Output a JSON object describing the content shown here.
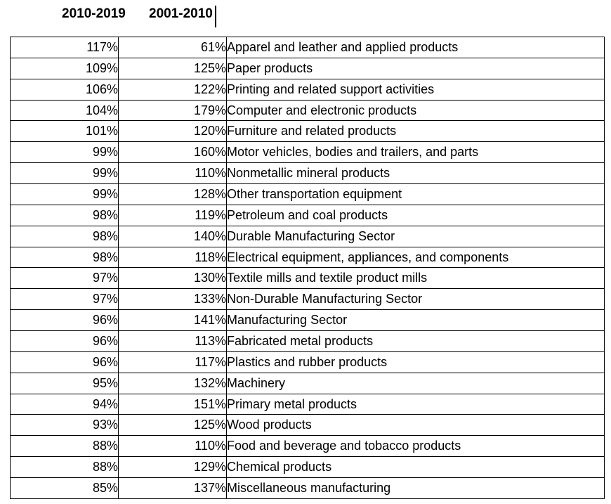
{
  "document": {
    "column_headers": [
      "2010-2019",
      "2001-2010"
    ]
  },
  "chart_data": {
    "type": "table",
    "columns": [
      "2010-2019",
      "2001-2010",
      ""
    ],
    "rows": [
      [
        "117%",
        "61%",
        "Apparel and leather and applied products"
      ],
      [
        "109%",
        "125%",
        "Paper products"
      ],
      [
        "106%",
        "122%",
        "Printing and related support activities"
      ],
      [
        "104%",
        "179%",
        "Computer and electronic products"
      ],
      [
        "101%",
        "120%",
        "Furniture and related products"
      ],
      [
        "99%",
        "160%",
        "Motor vehicles, bodies and trailers, and parts"
      ],
      [
        "99%",
        "110%",
        "Nonmetallic mineral products"
      ],
      [
        "99%",
        "128%",
        "Other transportation equipment"
      ],
      [
        "98%",
        "119%",
        "Petroleum and coal products"
      ],
      [
        "98%",
        "140%",
        "Durable Manufacturing Sector"
      ],
      [
        "98%",
        "118%",
        "Electrical equipment, appliances, and components"
      ],
      [
        "97%",
        "130%",
        "Textile mills and textile product mills"
      ],
      [
        "97%",
        "133%",
        "Non-Durable Manufacturing Sector"
      ],
      [
        "96%",
        "141%",
        "Manufacturing Sector"
      ],
      [
        "96%",
        "113%",
        "Fabricated metal products"
      ],
      [
        "96%",
        "117%",
        "Plastics and rubber products"
      ],
      [
        "95%",
        "132%",
        "Machinery"
      ],
      [
        "94%",
        "151%",
        "Primary metal products"
      ],
      [
        "93%",
        "125%",
        "Wood products"
      ],
      [
        "88%",
        "110%",
        "Food and beverage and tobacco products"
      ],
      [
        "88%",
        "129%",
        "Chemical products"
      ],
      [
        "85%",
        "137%",
        "Miscellaneous manufacturing"
      ]
    ]
  },
  "colors": {
    "text": "#000000",
    "border": "#000000",
    "background": "#ffffff"
  }
}
